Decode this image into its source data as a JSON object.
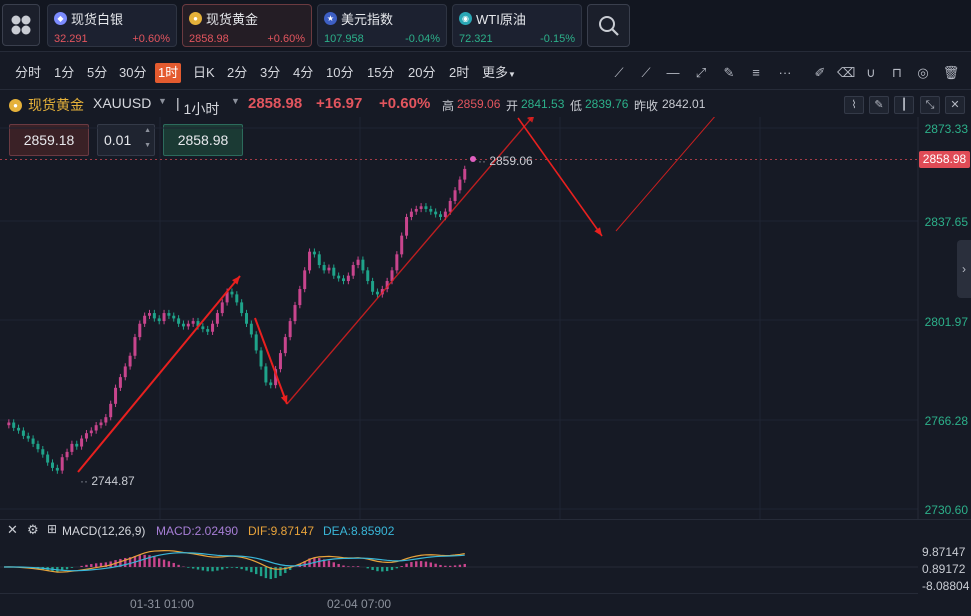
{
  "tickers": [
    {
      "name": "现货白银",
      "price": "32.291",
      "change": "+0.60%",
      "dir": "up",
      "icon": "silver-coin-icon",
      "color": "#7c8cff"
    },
    {
      "name": "现货黄金",
      "price": "2858.98",
      "change": "+0.60%",
      "dir": "up",
      "icon": "gold-coin-icon",
      "color": "#e5b13a"
    },
    {
      "name": "美元指数",
      "price": "107.958",
      "change": "-0.04%",
      "dir": "down",
      "icon": "us-flag-icon",
      "color": "#3d5fc4"
    },
    {
      "name": "WTI原油",
      "price": "72.321",
      "change": "-0.15%",
      "dir": "down",
      "icon": "oil-icon",
      "color": "#2aa7b5"
    }
  ],
  "timeframes": [
    "分时",
    "1分",
    "5分",
    "30分",
    "1时",
    "日K",
    "2分",
    "3分",
    "4分",
    "10分",
    "15分",
    "20分",
    "2时",
    "更多"
  ],
  "active_timeframe": "1时",
  "drawing_tools": [
    "trend-line-icon",
    "ray-icon",
    "horizontal-line-icon",
    "segment-icon",
    "pen-icon",
    "dots-icon",
    "more-icon"
  ],
  "right_tools": [
    "edit-icon",
    "eraser-icon",
    "magnet-icon",
    "lock-icon",
    "eye-icon",
    "delete-icon"
  ],
  "info": {
    "symbol_cn": "现货黄金",
    "symbol": "XAUUSD",
    "interval": "1小时",
    "last": "2858.98",
    "change": "+16.97",
    "change_pct": "+0.60%",
    "high_label": "高",
    "high": "2859.06",
    "open_label": "开",
    "open": "2841.53",
    "low_label": "低",
    "low": "2839.76",
    "prev_label": "昨收",
    "prev": "2842.01"
  },
  "order": {
    "bid": "2859.18",
    "lot": "0.01",
    "ask": "2858.98"
  },
  "price_axis": [
    "2873.33",
    "2837.65",
    "2801.97",
    "2766.28",
    "2730.60"
  ],
  "current_price_tag": "2858.98",
  "annotations": {
    "high_mark": "2859.06",
    "low_mark": "2744.87"
  },
  "macd": {
    "title": "MACD(12,26,9)",
    "macd": "MACD:2.02490",
    "dif": "DIF:9.87147",
    "dea": "DEA:8.85902",
    "axis": [
      "9.87147",
      "0.89172",
      "-8.08804"
    ]
  },
  "time_labels": [
    "01-31 01:00",
    "02-04 07:00"
  ],
  "colors": {
    "up": "#e2555e",
    "down": "#2cb08a",
    "candle_up": "#c8458d",
    "candle_down": "#1fa38a",
    "arrow": "#e8201f",
    "dif_line": "#e8a33b",
    "dea_line": "#39b6d8"
  },
  "chart_data": {
    "type": "candlestick",
    "interval": "1小时",
    "ylim": [
      2730.6,
      2873.33
    ],
    "closes": [
      2762,
      2763,
      2761,
      2760,
      2758,
      2757,
      2755,
      2753,
      2751,
      2748,
      2746,
      2745,
      2750,
      2752,
      2755,
      2754,
      2757,
      2759,
      2760,
      2762,
      2763,
      2765,
      2770,
      2776,
      2780,
      2784,
      2788,
      2795,
      2800,
      2803,
      2804,
      2802,
      2801,
      2804,
      2803,
      2802,
      2800,
      2799,
      2800,
      2801,
      2799,
      2798,
      2797,
      2800,
      2804,
      2808,
      2812,
      2811,
      2808,
      2804,
      2800,
      2796,
      2790,
      2784,
      2778,
      2777,
      2783,
      2789,
      2795,
      2801,
      2807,
      2813,
      2820,
      2827,
      2826,
      2822,
      2820,
      2821,
      2818,
      2817,
      2816,
      2818,
      2822,
      2824,
      2820,
      2816,
      2812,
      2811,
      2813,
      2816,
      2820,
      2826,
      2833,
      2840,
      2842,
      2843,
      2844,
      2843,
      2842,
      2841,
      2840,
      2842,
      2846,
      2850,
      2854,
      2858
    ]
  }
}
